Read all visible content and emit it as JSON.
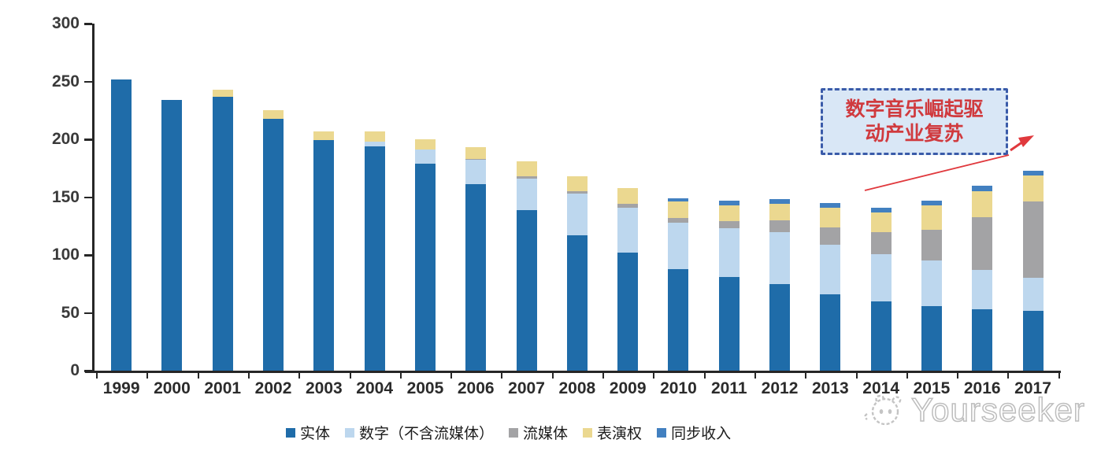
{
  "chart_data": {
    "type": "bar",
    "subtype": "stacked-vertical",
    "title": "",
    "xlabel": "",
    "ylabel": "",
    "ylim": [
      0,
      300
    ],
    "yticks": [
      0,
      50,
      100,
      150,
      200,
      250,
      300
    ],
    "grid": false,
    "legend_position": "bottom",
    "categories": [
      "1999",
      "2000",
      "2001",
      "2002",
      "2003",
      "2004",
      "2005",
      "2006",
      "2007",
      "2008",
      "2009",
      "2010",
      "2011",
      "2012",
      "2013",
      "2014",
      "2015",
      "2016",
      "2017"
    ],
    "series": [
      {
        "name": "实体",
        "color": "#1f6ca9",
        "values": [
          252,
          234,
          237,
          218,
          199,
          194,
          179,
          161,
          139,
          117,
          102,
          88,
          81,
          75,
          66,
          60,
          56,
          53,
          52
        ]
      },
      {
        "name": "数字（不含流媒体）",
        "color": "#bdd7ee",
        "values": [
          0,
          0,
          0,
          0,
          0,
          4,
          12,
          21,
          27,
          36,
          39,
          40,
          42,
          45,
          43,
          41,
          39,
          34,
          28
        ]
      },
      {
        "name": "流媒体",
        "color": "#a3a3a5",
        "values": [
          0,
          0,
          0,
          0,
          0,
          0,
          0,
          1,
          2,
          2,
          3,
          4,
          6,
          10,
          15,
          19,
          27,
          46,
          66
        ]
      },
      {
        "name": "表演权",
        "color": "#ebd890",
        "values": [
          0,
          0,
          6,
          7,
          8,
          9,
          9,
          10,
          13,
          13,
          14,
          14,
          14,
          14,
          17,
          17,
          21,
          22,
          23
        ]
      },
      {
        "name": "同步收入",
        "color": "#4280c0",
        "values": [
          0,
          0,
          0,
          0,
          0,
          0,
          0,
          0,
          0,
          0,
          0,
          3,
          4,
          4,
          4,
          4,
          4,
          5,
          4
        ]
      }
    ]
  },
  "annotation": {
    "line1": "数字音乐崛起驱",
    "line2": "动产业复苏",
    "arrow_color": "#e0393d",
    "box_border_color": "#3a5ba9",
    "box_fill_color": "#d9e7f6"
  },
  "watermark": {
    "text": "Yourseeker"
  }
}
